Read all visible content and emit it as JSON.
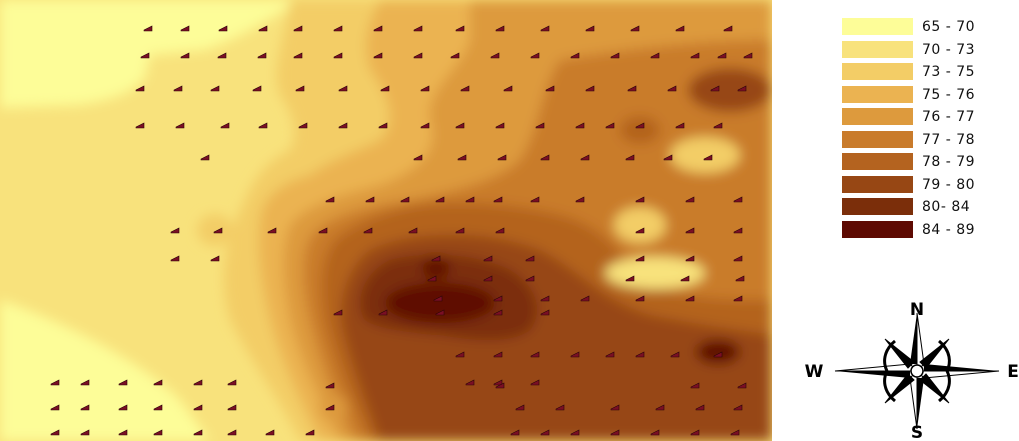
{
  "map": {
    "colors": {
      "c1": "#fdfd98",
      "c2": "#f8e27c",
      "c3": "#f3cd66",
      "c4": "#ebb351",
      "c5": "#dd9a3d",
      "c6": "#c97b2b",
      "c7": "#b4631f",
      "c8": "#974714",
      "c9": "#7b2e0a",
      "c10": "#5e0a02"
    },
    "sample_marker_color": "#7a0f24"
  },
  "legend": {
    "items": [
      {
        "label": "65 - 70",
        "color": "#fdfd98"
      },
      {
        "label": "70 - 73",
        "color": "#f8e27c"
      },
      {
        "label": "73 - 75",
        "color": "#f3cd66"
      },
      {
        "label": "75 - 76",
        "color": "#ebb351"
      },
      {
        "label": "76 - 77",
        "color": "#dd9a3d"
      },
      {
        "label": "77 - 78",
        "color": "#c97b2b"
      },
      {
        "label": "78 - 79",
        "color": "#b4631f"
      },
      {
        "label": "79 - 80",
        "color": "#974714"
      },
      {
        "label": "80- 84",
        "color": "#7b2e0a"
      },
      {
        "label": "84 - 89",
        "color": "#5e0a02"
      }
    ]
  },
  "compass": {
    "north": "N",
    "south": "S",
    "east": "E",
    "west": "W",
    "icon": "compass-rose-icon"
  }
}
